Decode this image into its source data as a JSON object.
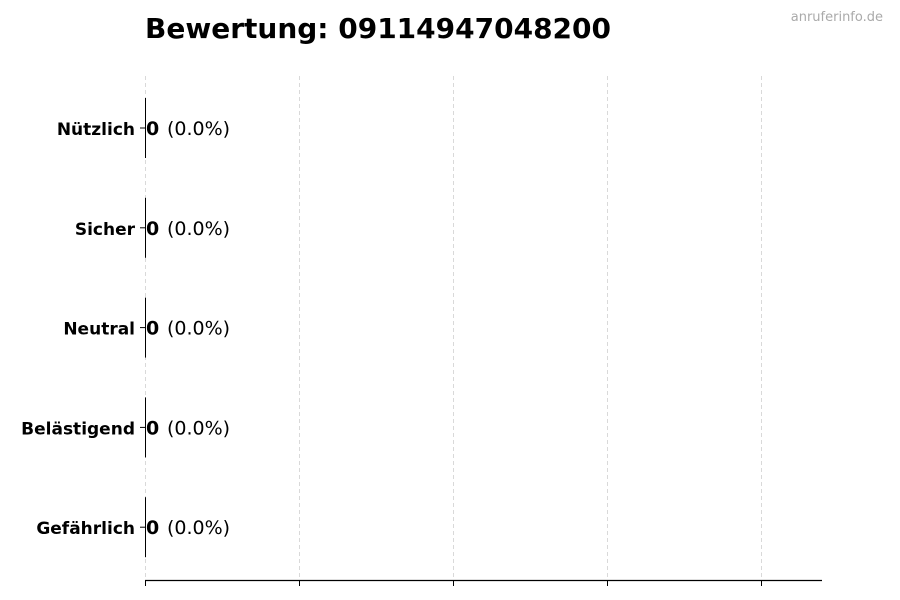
{
  "watermark": "anruferinfo.de",
  "chart_data": {
    "type": "bar",
    "orientation": "horizontal",
    "title": "Bewertung: 09114947048200",
    "categories": [
      "Nützlich",
      "Sicher",
      "Neutral",
      "Belästigend",
      "Gefährlich"
    ],
    "values": [
      0,
      0,
      0,
      0,
      0
    ],
    "percent_labels": [
      "(0.0%)",
      "(0.0%)",
      "(0.0%)",
      "(0.0%)",
      "(0.0%)"
    ],
    "xlabel": "",
    "ylabel": "",
    "x_tick_count": 5,
    "x_tick_labels_shown": false,
    "grid": "vertical dashed",
    "bar_color": "#000000",
    "grid_color": "#d9d9d9"
  }
}
